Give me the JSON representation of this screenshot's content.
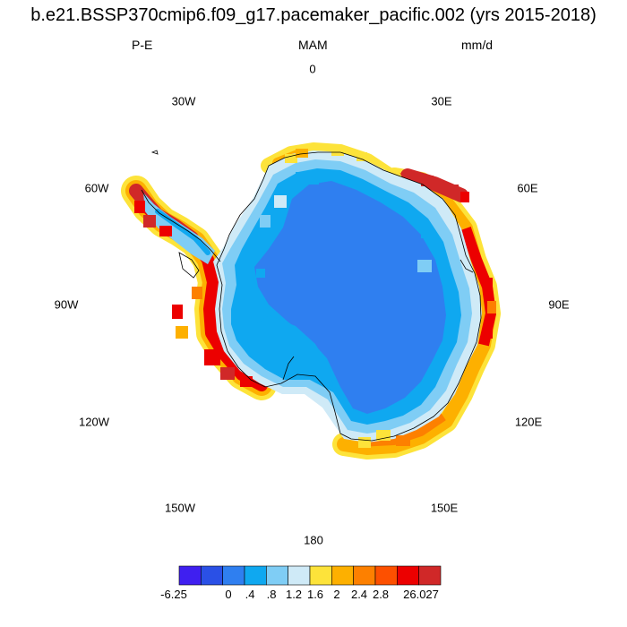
{
  "title": "b.e21.BSSP370cmip6.f09_g17.pacemaker_pacific.002 (yrs 2015-2018)",
  "left_label": "P-E",
  "center_label": "MAM",
  "right_label": "mm/d",
  "longitude_labels": {
    "l0": "0",
    "l30e": "30E",
    "l60e": "60E",
    "l90e": "90E",
    "l120e": "120E",
    "l150e": "150E",
    "l180": "180",
    "l150w": "150W",
    "l120w": "120W",
    "l90w": "90W",
    "l60w": "60W",
    "l30w": "30W"
  },
  "colorbar": {
    "colors": [
      "#3f1ff0",
      "#2a50e6",
      "#2f7ff0",
      "#0fa8f0",
      "#7fcdf5",
      "#cfeaf7",
      "#fde33a",
      "#fdb000",
      "#fd8000",
      "#fd5000",
      "#ec0000",
      "#d02828"
    ],
    "labels": [
      "-6.25",
      "0",
      ".4",
      ".8",
      "1.2",
      "1.6",
      "2",
      "2.4",
      "2.8",
      "26.027"
    ]
  },
  "map_colors": {
    "interior": "#2f7ff0",
    "inner_ring": "#0fa8f0",
    "coastal_light": "#7fcdf5",
    "very_light": "#cfeaf7",
    "yellow": "#fde33a",
    "orange": "#fdb000",
    "dark_orange": "#fd8000",
    "red": "#ec0000",
    "dark_red": "#d02828",
    "coastline": "#000000"
  }
}
